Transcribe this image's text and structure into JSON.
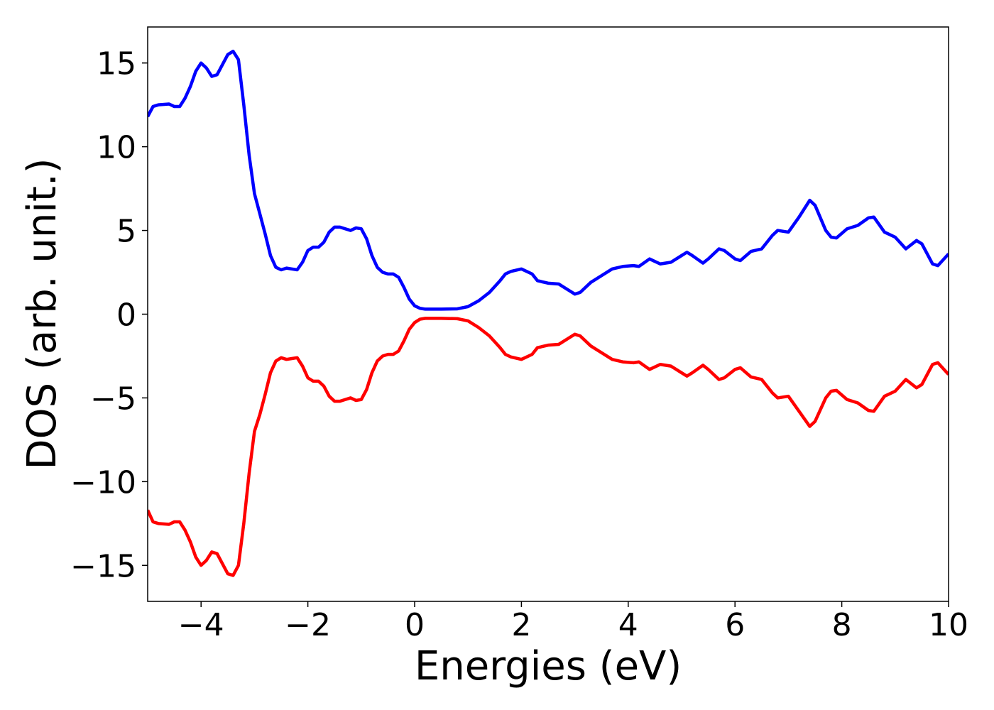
{
  "chart_data": {
    "type": "line",
    "xlabel": "Energies (eV)",
    "ylabel": "DOS (arb. unit.)",
    "x": [
      -5,
      -4.9,
      -4.8,
      -4.6,
      -4.5,
      -4.4,
      -4.3,
      -4.2,
      -4.1,
      -4.0,
      -3.9,
      -3.8,
      -3.7,
      -3.6,
      -3.5,
      -3.4,
      -3.3,
      -3.2,
      -3.1,
      -3.0,
      -2.9,
      -2.8,
      -2.7,
      -2.6,
      -2.5,
      -2.4,
      -2.3,
      -2.2,
      -2.1,
      -2.0,
      -1.9,
      -1.8,
      -1.7,
      -1.6,
      -1.5,
      -1.4,
      -1.3,
      -1.2,
      -1.1,
      -1.0,
      -0.9,
      -0.8,
      -0.7,
      -0.6,
      -0.5,
      -0.4,
      -0.3,
      -0.2,
      -0.1,
      0.0,
      0.1,
      0.2,
      0.5,
      0.8,
      1.0,
      1.2,
      1.4,
      1.6,
      1.7,
      1.8,
      2.0,
      2.2,
      2.3,
      2.5,
      2.7,
      2.9,
      3.0,
      3.1,
      3.3,
      3.5,
      3.7,
      3.9,
      4.1,
      4.2,
      4.4,
      4.6,
      4.8,
      5.0,
      5.1,
      5.2,
      5.4,
      5.5,
      5.7,
      5.8,
      6.0,
      6.1,
      6.3,
      6.5,
      6.7,
      6.8,
      7.0,
      7.2,
      7.4,
      7.5,
      7.7,
      7.8,
      7.9,
      8.1,
      8.3,
      8.5,
      8.6,
      8.8,
      9.0,
      9.2,
      9.4,
      9.5,
      9.7,
      9.8,
      10.0
    ],
    "series": [
      {
        "color": "#0000ff",
        "values": [
          11.8,
          12.4,
          12.5,
          12.55,
          12.4,
          12.4,
          12.9,
          13.6,
          14.5,
          15.0,
          14.7,
          14.2,
          14.3,
          14.9,
          15.5,
          15.7,
          15.2,
          12.5,
          9.5,
          7.2,
          6.0,
          4.8,
          3.5,
          2.8,
          2.65,
          2.75,
          2.7,
          2.65,
          3.1,
          3.8,
          4.0,
          4.0,
          4.3,
          4.9,
          5.2,
          5.2,
          5.1,
          5.0,
          5.15,
          5.1,
          4.5,
          3.5,
          2.8,
          2.5,
          2.4,
          2.4,
          2.2,
          1.6,
          0.9,
          0.5,
          0.35,
          0.3,
          0.3,
          0.32,
          0.45,
          0.8,
          1.3,
          2.0,
          2.4,
          2.55,
          2.7,
          2.4,
          2.0,
          1.85,
          1.8,
          1.4,
          1.2,
          1.3,
          1.9,
          2.3,
          2.7,
          2.85,
          2.9,
          2.85,
          3.3,
          3.0,
          3.1,
          3.5,
          3.7,
          3.5,
          3.05,
          3.3,
          3.9,
          3.8,
          3.3,
          3.2,
          3.75,
          3.9,
          4.7,
          5.0,
          4.9,
          5.8,
          6.8,
          6.5,
          5.0,
          4.6,
          4.55,
          5.1,
          5.3,
          5.75,
          5.8,
          4.9,
          4.6,
          3.9,
          4.4,
          4.2,
          3.0,
          2.9,
          3.6
        ]
      },
      {
        "color": "#ff0000",
        "values": [
          -11.7,
          -12.4,
          -12.5,
          -12.55,
          -12.4,
          -12.4,
          -12.9,
          -13.6,
          -14.5,
          -15.0,
          -14.7,
          -14.2,
          -14.3,
          -14.9,
          -15.5,
          -15.6,
          -15.0,
          -12.5,
          -9.5,
          -7.0,
          -6.0,
          -4.8,
          -3.5,
          -2.8,
          -2.6,
          -2.7,
          -2.65,
          -2.6,
          -3.1,
          -3.8,
          -4.0,
          -4.0,
          -4.3,
          -4.9,
          -5.2,
          -5.2,
          -5.1,
          -5.0,
          -5.15,
          -5.1,
          -4.5,
          -3.5,
          -2.8,
          -2.5,
          -2.4,
          -2.4,
          -2.2,
          -1.6,
          -0.9,
          -0.5,
          -0.3,
          -0.25,
          -0.25,
          -0.27,
          -0.4,
          -0.8,
          -1.3,
          -2.0,
          -2.4,
          -2.55,
          -2.7,
          -2.4,
          -2.0,
          -1.85,
          -1.8,
          -1.4,
          -1.2,
          -1.3,
          -1.9,
          -2.3,
          -2.7,
          -2.85,
          -2.9,
          -2.85,
          -3.3,
          -3.0,
          -3.1,
          -3.5,
          -3.7,
          -3.5,
          -3.05,
          -3.3,
          -3.9,
          -3.8,
          -3.3,
          -3.2,
          -3.75,
          -3.9,
          -4.7,
          -5.0,
          -4.9,
          -5.8,
          -6.7,
          -6.4,
          -5.0,
          -4.6,
          -4.55,
          -5.1,
          -5.3,
          -5.75,
          -5.8,
          -4.9,
          -4.6,
          -3.9,
          -4.4,
          -4.2,
          -3.0,
          -2.9,
          -3.6
        ]
      }
    ],
    "xlim": [
      -5,
      10
    ],
    "xticks": [
      {
        "value": -4,
        "label": "−4"
      },
      {
        "value": -2,
        "label": "−2"
      },
      0,
      2,
      4,
      6,
      8,
      10
    ],
    "ylim": [
      -17.15,
      17.15
    ],
    "yticks": [
      {
        "value": -15,
        "label": "−15"
      },
      {
        "value": -10,
        "label": "−10"
      },
      {
        "value": -5,
        "label": "−5"
      },
      0,
      5,
      10,
      15
    ],
    "grid": false
  }
}
